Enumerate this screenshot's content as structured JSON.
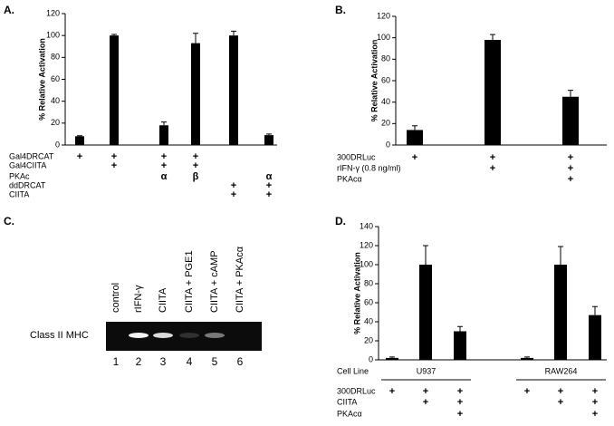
{
  "chart_data": [
    {
      "panel": "A.",
      "type": "bar",
      "ylabel": "% Relative Activation",
      "color": "#000000",
      "values": [
        8,
        100,
        18,
        93,
        100,
        9
      ],
      "errors": [
        0.5,
        1,
        3,
        9,
        4,
        1
      ],
      "ylim": [
        0,
        120
      ],
      "yticks": [
        0,
        20,
        40,
        60,
        80,
        100,
        120
      ],
      "conditions": [
        {
          "label": "Gal4DRCAT",
          "cells": [
            "+",
            "+",
            "+",
            "+",
            null,
            null
          ]
        },
        {
          "label": "Gal4CIITA",
          "cells": [
            null,
            "+",
            "+",
            "+",
            null,
            null
          ]
        },
        {
          "label": "PKAc",
          "cells": [
            null,
            null,
            "α",
            "β",
            null,
            "α"
          ]
        },
        {
          "label": "ddDRCAT",
          "cells": [
            null,
            null,
            null,
            null,
            "+",
            "+"
          ]
        },
        {
          "label": "CIITA",
          "cells": [
            null,
            null,
            null,
            null,
            "+",
            "+"
          ]
        }
      ]
    },
    {
      "panel": "B.",
      "type": "bar",
      "ylabel": "% Relative Activation",
      "color": "#000000",
      "values": [
        14,
        98,
        45
      ],
      "errors": [
        4,
        5,
        6
      ],
      "ylim": [
        0,
        120
      ],
      "yticks": [
        0,
        20,
        40,
        60,
        80,
        100,
        120
      ],
      "conditions": [
        {
          "label": "300DRLuc",
          "cells": [
            "+",
            "+",
            "+"
          ]
        },
        {
          "label": "rIFN-γ (0.8 ng/ml)",
          "cells": [
            null,
            "+",
            "+"
          ]
        },
        {
          "label": "PKAcα",
          "cells": [
            null,
            null,
            "+"
          ]
        }
      ]
    },
    {
      "panel": "D.",
      "type": "bar",
      "ylabel": "% Relative Activation",
      "color": "#000000",
      "values": [
        2,
        100,
        30,
        2,
        100,
        47
      ],
      "errors": [
        1,
        20,
        5,
        1,
        19,
        9
      ],
      "ylim": [
        0,
        140
      ],
      "yticks": [
        0,
        20,
        40,
        60,
        80,
        100,
        120,
        140
      ],
      "group_title": "Cell Line",
      "groups": [
        "U937",
        "RAW264"
      ],
      "conditions": [
        {
          "label": "300DRLuc",
          "cells": [
            "+",
            "+",
            "+",
            "+",
            "+",
            "+"
          ]
        },
        {
          "label": "CIITA",
          "cells": [
            null,
            "+",
            "+",
            null,
            "+",
            "+"
          ]
        },
        {
          "label": "PKAcα",
          "cells": [
            null,
            null,
            "+",
            null,
            null,
            "+"
          ]
        }
      ]
    }
  ],
  "gel": {
    "panel": "C.",
    "row_label": "Class II MHC",
    "lanes": [
      {
        "label": "control",
        "number": 1
      },
      {
        "label": "rIFN-γ",
        "number": 2
      },
      {
        "label": "CIITA",
        "number": 3
      },
      {
        "label": "CIITA + PGE1",
        "number": 4
      },
      {
        "label": "CIITA + cAMP",
        "number": 5
      },
      {
        "label": "CIITA + PKAcα",
        "number": 6
      }
    ]
  }
}
